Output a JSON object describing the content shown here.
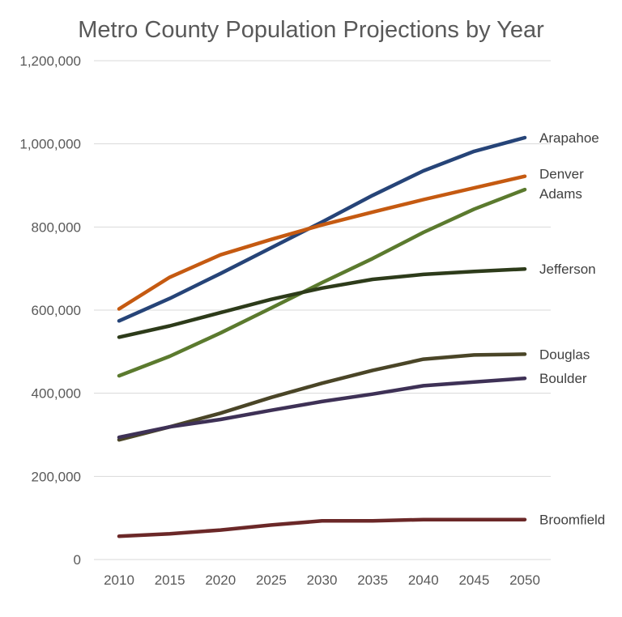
{
  "chart_data": {
    "type": "line",
    "title": "Metro County Population Projections by Year",
    "xlabel": "",
    "ylabel": "",
    "categories": [
      "2010",
      "2015",
      "2020",
      "2025",
      "2030",
      "2035",
      "2040",
      "2045",
      "2050"
    ],
    "ylim": [
      0,
      1200000
    ],
    "yticks": [
      0,
      200000,
      400000,
      600000,
      800000,
      1000000,
      1200000
    ],
    "ytick_labels": [
      "0",
      "200,000",
      "400,000",
      "600,000",
      "800,000",
      "1,000,000",
      "1,200,000"
    ],
    "grid": true,
    "legend": "direct labels at line ends",
    "series": [
      {
        "name": "Arapahoe",
        "color": "#264478",
        "values": [
          574000,
          628000,
          688000,
          750000,
          812000,
          876000,
          935000,
          982000,
          1015000
        ]
      },
      {
        "name": "Denver",
        "color": "#C55A11",
        "values": [
          603000,
          679000,
          733000,
          770000,
          805000,
          836000,
          866000,
          894000,
          922000
        ]
      },
      {
        "name": "Adams",
        "color": "#5B7A2E",
        "values": [
          442000,
          489000,
          545000,
          605000,
          666000,
          724000,
          787000,
          843000,
          890000
        ]
      },
      {
        "name": "Jefferson",
        "color": "#2D3B1A",
        "values": [
          535000,
          562000,
          594000,
          626000,
          653000,
          674000,
          686000,
          693000,
          699000
        ]
      },
      {
        "name": "Douglas",
        "color": "#4A4527",
        "values": [
          288000,
          319000,
          352000,
          390000,
          424000,
          455000,
          482000,
          492000,
          494000
        ]
      },
      {
        "name": "Boulder",
        "color": "#3E3156",
        "values": [
          294000,
          319000,
          337000,
          359000,
          380000,
          398000,
          418000,
          427000,
          436000
        ]
      },
      {
        "name": "Broomfield",
        "color": "#6B2828",
        "values": [
          56000,
          62000,
          71000,
          83000,
          93000,
          93000,
          96000,
          96000,
          96000
        ]
      }
    ]
  }
}
